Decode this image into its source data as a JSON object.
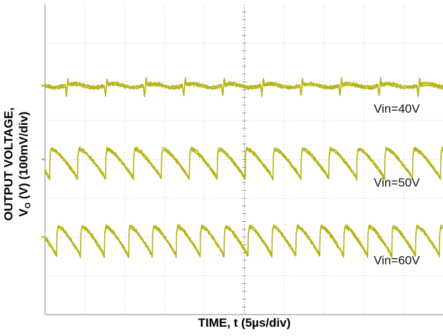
{
  "chart_data": {
    "type": "line",
    "title": "",
    "ylabel_line1": "OUTPUT VOLTAGE,",
    "ylabel_symbol": "V",
    "ylabel_subscript": "O",
    "ylabel_rest": " (V) (100mV/div)",
    "xlabel": "TIME, t (5µs/div)",
    "x_unit": "µs",
    "x_divisions": 10,
    "y_divisions": 8,
    "grid": true,
    "trace_color": "#b5b20f",
    "series": [
      {
        "name": "Vin=40V",
        "ripple_mv_pp": 30,
        "period_us": 4.9,
        "ground_div": 5.9
      },
      {
        "name": "Vin=50V",
        "ripple_mv_pp": 60,
        "period_us": 3.5,
        "ground_div": 4.0
      },
      {
        "name": "Vin=60V",
        "ripple_mv_pp": 60,
        "period_us": 3.0,
        "ground_div": 2.0
      }
    ]
  }
}
